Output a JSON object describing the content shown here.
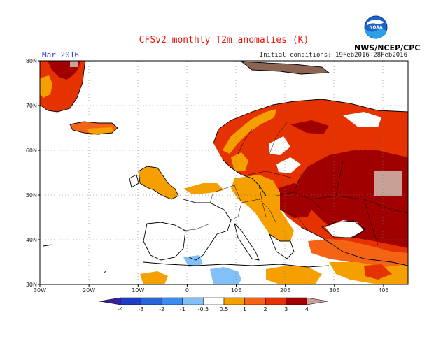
{
  "title": "CFSv2 monthly T2m anomalies (K)",
  "month": "Mar 2016",
  "init": "Initial conditions: 19Feb2016-28Feb2016",
  "agency": "NWS/NCEP/CPC",
  "logo_text": "NOAA",
  "lat_ticks": [
    {
      "lat": 80,
      "label": "80N"
    },
    {
      "lat": 70,
      "label": "70N"
    },
    {
      "lat": 60,
      "label": "60N"
    },
    {
      "lat": 50,
      "label": "50N"
    },
    {
      "lat": 40,
      "label": "40N"
    },
    {
      "lat": 30,
      "label": "30N"
    }
  ],
  "lon_ticks": [
    {
      "lon": -30,
      "label": "30W"
    },
    {
      "lon": -20,
      "label": "20W"
    },
    {
      "lon": -10,
      "label": "10W"
    },
    {
      "lon": 0,
      "label": "0"
    },
    {
      "lon": 10,
      "label": "10E"
    },
    {
      "lon": 20,
      "label": "20E"
    },
    {
      "lon": 30,
      "label": "30E"
    },
    {
      "lon": 40,
      "label": "40E"
    }
  ],
  "colorbar": {
    "labels": [
      "-4",
      "-3",
      "-2",
      "-1",
      "-0.5",
      "0.5",
      "1",
      "2",
      "3",
      "4"
    ],
    "colors": [
      "#3c1ea0",
      "#1e3cc8",
      "#2866d8",
      "#3c8cf0",
      "#82c0f8",
      "#ffffff",
      "#f5a000",
      "#f56414",
      "#e63200",
      "#a00000",
      "#c8a096"
    ]
  },
  "colors": {
    "anom_0_5_1": "#f5a000",
    "anom_1_2": "#f56414",
    "anom_2_3": "#e63200",
    "anom_3_4": "#a00000",
    "anom_gt4": "#c8a096",
    "anom_neg_0_5": "#82c0f8",
    "anom_neg_1": "#3c8cf0",
    "title": "#e8140c",
    "month": "#2a3cd8"
  }
}
